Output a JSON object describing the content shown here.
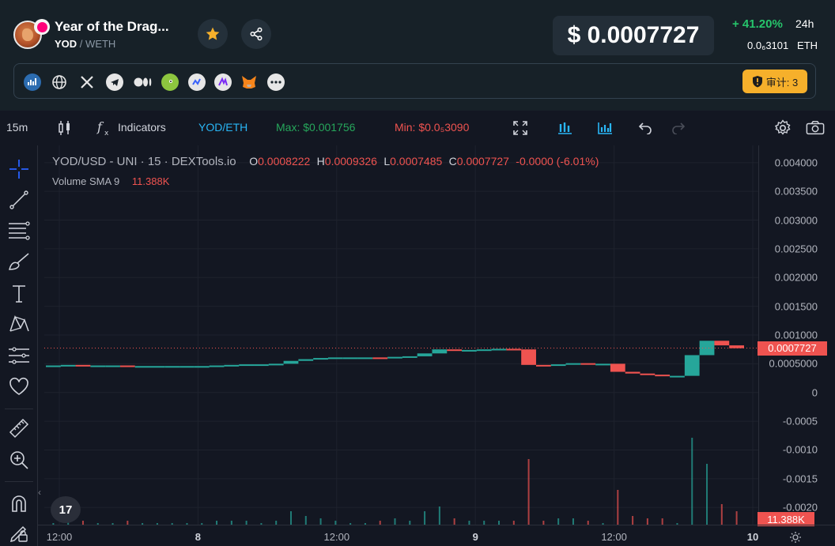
{
  "header": {
    "token_name": "Year of the Drag...",
    "pair_base": "YOD",
    "pair_sep": "/",
    "pair_quote": "WETH",
    "price_usd": "$ 0.0007727",
    "change_24h": "+ 41.20%",
    "change_period": "24h",
    "price_eth": "0.0₆3101",
    "price_eth_unit": "ETH",
    "audit_label": "审计: 3",
    "accent_color": "#f6b02b",
    "positive_color": "#26c46b"
  },
  "links": [
    {
      "name": "dextools",
      "icon": "chart-icon"
    },
    {
      "name": "website",
      "icon": "globe-icon"
    },
    {
      "name": "x",
      "icon": "x-icon"
    },
    {
      "name": "telegram",
      "icon": "telegram-icon"
    },
    {
      "name": "medium",
      "icon": "medium-icon"
    },
    {
      "name": "coingecko",
      "icon": "gecko-icon"
    },
    {
      "name": "coinmarketcap",
      "icon": "cmc-icon"
    },
    {
      "name": "etherscan",
      "icon": "chain-icon"
    },
    {
      "name": "metamask",
      "icon": "fox-icon"
    },
    {
      "name": "more",
      "icon": "more-icon"
    }
  ],
  "toolbar": {
    "interval": "15m",
    "indicators": "Indicators",
    "pair": "YOD/ETH",
    "max_label": "Max: $0.001756",
    "min_label": "Min: $0.0₅3090"
  },
  "legend": {
    "title": "YOD/USD - UNI · 15 · DEXTools.io",
    "o_key": "O",
    "o_val": "0.0008222",
    "h_key": "H",
    "h_val": "0.0009326",
    "l_key": "L",
    "l_val": "0.0007485",
    "c_key": "C",
    "c_val": "0.0007727",
    "change": "-0.0000 (-6.01%)",
    "volume_name": "Volume SMA 9",
    "volume_val": "11.388K"
  },
  "price_axis": {
    "ticks": [
      "0.004000",
      "0.003500",
      "0.003000",
      "0.002500",
      "0.002000",
      "0.001500",
      "0.001000",
      "0.0005000",
      "0",
      "-0.0005",
      "-0.0010",
      "-0.0015",
      "-0.0020"
    ],
    "last_price": "0.0007727",
    "volume_tag": "11.388K"
  },
  "time_axis": {
    "ticks": [
      {
        "label": "12:00",
        "bold": false
      },
      {
        "label": "8",
        "bold": true
      },
      {
        "label": "12:00",
        "bold": false
      },
      {
        "label": "9",
        "bold": true
      },
      {
        "label": "12:00",
        "bold": false
      },
      {
        "label": "10",
        "bold": true
      }
    ]
  },
  "tv_logo": "17",
  "chart_data": {
    "type": "candlestick",
    "title": "YOD/USD - UNI · 15 · DEXTools.io",
    "ylim": [
      -0.0023,
      0.0043
    ],
    "last_price": 0.0007727,
    "series": [
      {
        "name": "price",
        "values": [
          0.00047,
          0.00048,
          0.00047,
          0.00047,
          0.00047,
          0.00046,
          0.00046,
          0.00046,
          0.00046,
          0.00046,
          0.00046,
          0.00047,
          0.00048,
          0.00049,
          0.00049,
          0.0005,
          0.00055,
          0.00058,
          0.0006,
          0.00061,
          0.00061,
          0.00061,
          0.0006,
          0.00062,
          0.00063,
          0.00068,
          0.00075,
          0.00073,
          0.00074,
          0.00075,
          0.00076,
          0.00075,
          0.00048,
          0.00047,
          0.00049,
          0.00051,
          0.0005,
          0.0005,
          0.00036,
          0.00033,
          0.00031,
          0.00029,
          0.00029,
          0.00065,
          0.0009,
          0.00082,
          0.00077
        ]
      }
    ]
  }
}
